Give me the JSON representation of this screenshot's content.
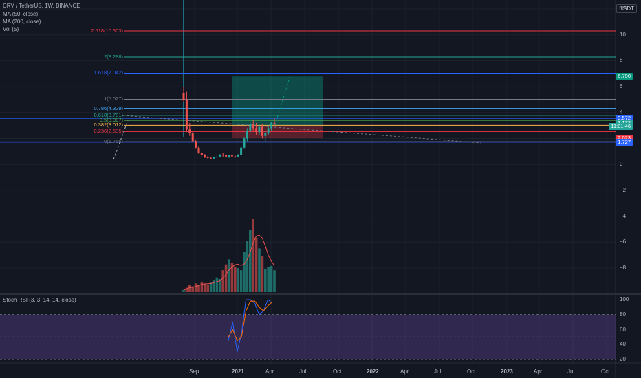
{
  "header": {
    "symbol_line": "CRV / TetherUS, 1W, BINANCE",
    "indicators": [
      "MA (50, close)",
      "MA (200, close)",
      "Vol (5)"
    ],
    "stoch_label": "Stoch RSI (3, 3, 14, 14, close)"
  },
  "currency_button": "USDT",
  "price_axis": [
    {
      "label": "12",
      "value": 12
    },
    {
      "label": "10",
      "value": 10
    },
    {
      "label": "8",
      "value": 8
    },
    {
      "label": "6",
      "value": 6
    },
    {
      "label": "4",
      "value": 4
    },
    {
      "label": "2",
      "value": 2
    },
    {
      "label": "0",
      "value": 0
    },
    {
      "label": "−2",
      "value": -2
    },
    {
      "label": "−4",
      "value": -4
    },
    {
      "label": "−6",
      "value": -6
    },
    {
      "label": "−8",
      "value": -8
    }
  ],
  "rsi_axis": [
    {
      "label": "100",
      "value": 100
    },
    {
      "label": "80",
      "value": 80
    },
    {
      "label": "60",
      "value": 60
    },
    {
      "label": "40",
      "value": 40
    },
    {
      "label": "20",
      "value": 20
    }
  ],
  "time_axis": [
    {
      "label": "Sep",
      "bold": false
    },
    {
      "label": "2021",
      "bold": true
    },
    {
      "label": "Apr",
      "bold": false
    },
    {
      "label": "Jul",
      "bold": false
    },
    {
      "label": "Oct",
      "bold": false
    },
    {
      "label": "2022",
      "bold": true
    },
    {
      "label": "Apr",
      "bold": false
    },
    {
      "label": "Jul",
      "bold": false
    },
    {
      "label": "Oct",
      "bold": false
    },
    {
      "label": "2023",
      "bold": true
    },
    {
      "label": "Apr",
      "bold": false
    },
    {
      "label": "Jul",
      "bold": false
    },
    {
      "label": "Oct",
      "bold": false
    }
  ],
  "fib_levels": [
    {
      "label": "2.618(10.303)",
      "price": 10.303,
      "color": "#f23645"
    },
    {
      "label": "2(8.288)",
      "price": 8.288,
      "color": "#22ab94"
    },
    {
      "label": "1.618(7.042)",
      "price": 7.042,
      "color": "#2962ff"
    },
    {
      "label": "1(5.027)",
      "price": 5.027,
      "color": "#787b86"
    },
    {
      "label": "0.786(4.329)",
      "price": 4.329,
      "color": "#42a5f5"
    },
    {
      "label": "0.618(3.781)",
      "price": 3.781,
      "color": "#22ab94"
    },
    {
      "label": "0.5(3.397)",
      "price": 3.397,
      "color": "#4caf50"
    },
    {
      "label": "0.382(3.012)",
      "price": 3.012,
      "color": "#ffb74d"
    },
    {
      "label": "0.236(2.535)",
      "price": 2.535,
      "color": "#f23645"
    },
    {
      "label": "0(1.756)",
      "price": 1.756,
      "color": "#787b86"
    }
  ],
  "price_tags": [
    {
      "label": "6.790",
      "price": 6.79,
      "color": "#089981"
    },
    {
      "label": "3.572",
      "price": 3.572,
      "color": "#2962ff"
    },
    {
      "label": "3.191",
      "price": 3.191,
      "color": "#363a45"
    },
    {
      "label": "3.172",
      "price": 3.172,
      "color": "#26a69a"
    },
    {
      "label": "11:01:46",
      "price": 2.95,
      "color": "#26a69a"
    },
    {
      "label": "2.023",
      "price": 2.023,
      "color": "#f23645"
    },
    {
      "label": "1.727",
      "price": 1.727,
      "color": "#2962ff"
    }
  ],
  "chart_data": {
    "type": "candlestick",
    "candles": [
      [
        5.5,
        6.0,
        4.8,
        5.0
      ],
      [
        5.0,
        5.6,
        2.5,
        2.7
      ],
      [
        2.7,
        3.2,
        2.2,
        2.4
      ],
      [
        2.4,
        2.6,
        1.7,
        1.8
      ],
      [
        1.8,
        1.9,
        1.2,
        1.3
      ],
      [
        1.3,
        1.4,
        0.8,
        0.9
      ],
      [
        0.9,
        1.0,
        0.6,
        0.7
      ],
      [
        0.7,
        0.8,
        0.5,
        0.55
      ],
      [
        0.55,
        0.65,
        0.42,
        0.5
      ],
      [
        0.5,
        0.6,
        0.38,
        0.45
      ],
      [
        0.45,
        0.6,
        0.4,
        0.55
      ],
      [
        0.55,
        0.7,
        0.45,
        0.6
      ],
      [
        0.6,
        0.8,
        0.55,
        0.75
      ],
      [
        0.75,
        0.9,
        0.6,
        0.7
      ],
      [
        0.7,
        0.8,
        0.55,
        0.6
      ],
      [
        0.6,
        0.75,
        0.5,
        0.7
      ],
      [
        0.7,
        0.75,
        0.55,
        0.62
      ],
      [
        0.62,
        0.7,
        0.5,
        0.6
      ],
      [
        0.6,
        0.8,
        0.55,
        0.75
      ],
      [
        0.75,
        1.4,
        0.7,
        1.3
      ],
      [
        1.3,
        2.1,
        1.2,
        2.0
      ],
      [
        2.0,
        2.8,
        1.8,
        2.6
      ],
      [
        2.6,
        3.3,
        2.4,
        3.1
      ],
      [
        3.1,
        3.4,
        2.6,
        2.8
      ],
      [
        2.8,
        3.2,
        2.3,
        2.5
      ],
      [
        2.5,
        3.0,
        2.3,
        2.9
      ],
      [
        2.9,
        3.1,
        2.0,
        2.2
      ],
      [
        2.2,
        2.6,
        1.8,
        2.4
      ],
      [
        2.4,
        3.0,
        2.3,
        2.8
      ],
      [
        2.8,
        3.3,
        2.6,
        3.2
      ],
      [
        3.2,
        3.6,
        2.9,
        3.172
      ]
    ],
    "volume_relative": [
      0.03,
      0.06,
      0.1,
      0.08,
      0.12,
      0.1,
      0.14,
      0.12,
      0.1,
      0.13,
      0.16,
      0.2,
      0.18,
      0.3,
      0.38,
      0.45,
      0.4,
      0.35,
      0.33,
      0.3,
      0.55,
      0.7,
      0.85,
      1.0,
      0.75,
      0.6,
      0.5,
      0.32,
      0.34,
      0.36,
      0.3
    ],
    "volume_up": [
      true,
      false,
      false,
      false,
      false,
      false,
      false,
      false,
      false,
      true,
      true,
      true,
      true,
      false,
      false,
      true,
      false,
      false,
      true,
      true,
      true,
      true,
      true,
      false,
      false,
      true,
      false,
      true,
      true,
      true,
      true
    ],
    "stoch_k": [
      45,
      70,
      30,
      55,
      100,
      100,
      95,
      80,
      85,
      100,
      95
    ],
    "stoch_d": [
      50,
      60,
      45,
      50,
      85,
      98,
      98,
      90,
      85,
      92,
      97
    ],
    "trade": {
      "entry": 2.95,
      "target": 6.79,
      "stop": 2.023
    },
    "ylim": [
      -9,
      12.5
    ],
    "rsi_ylim": [
      15,
      105
    ]
  }
}
